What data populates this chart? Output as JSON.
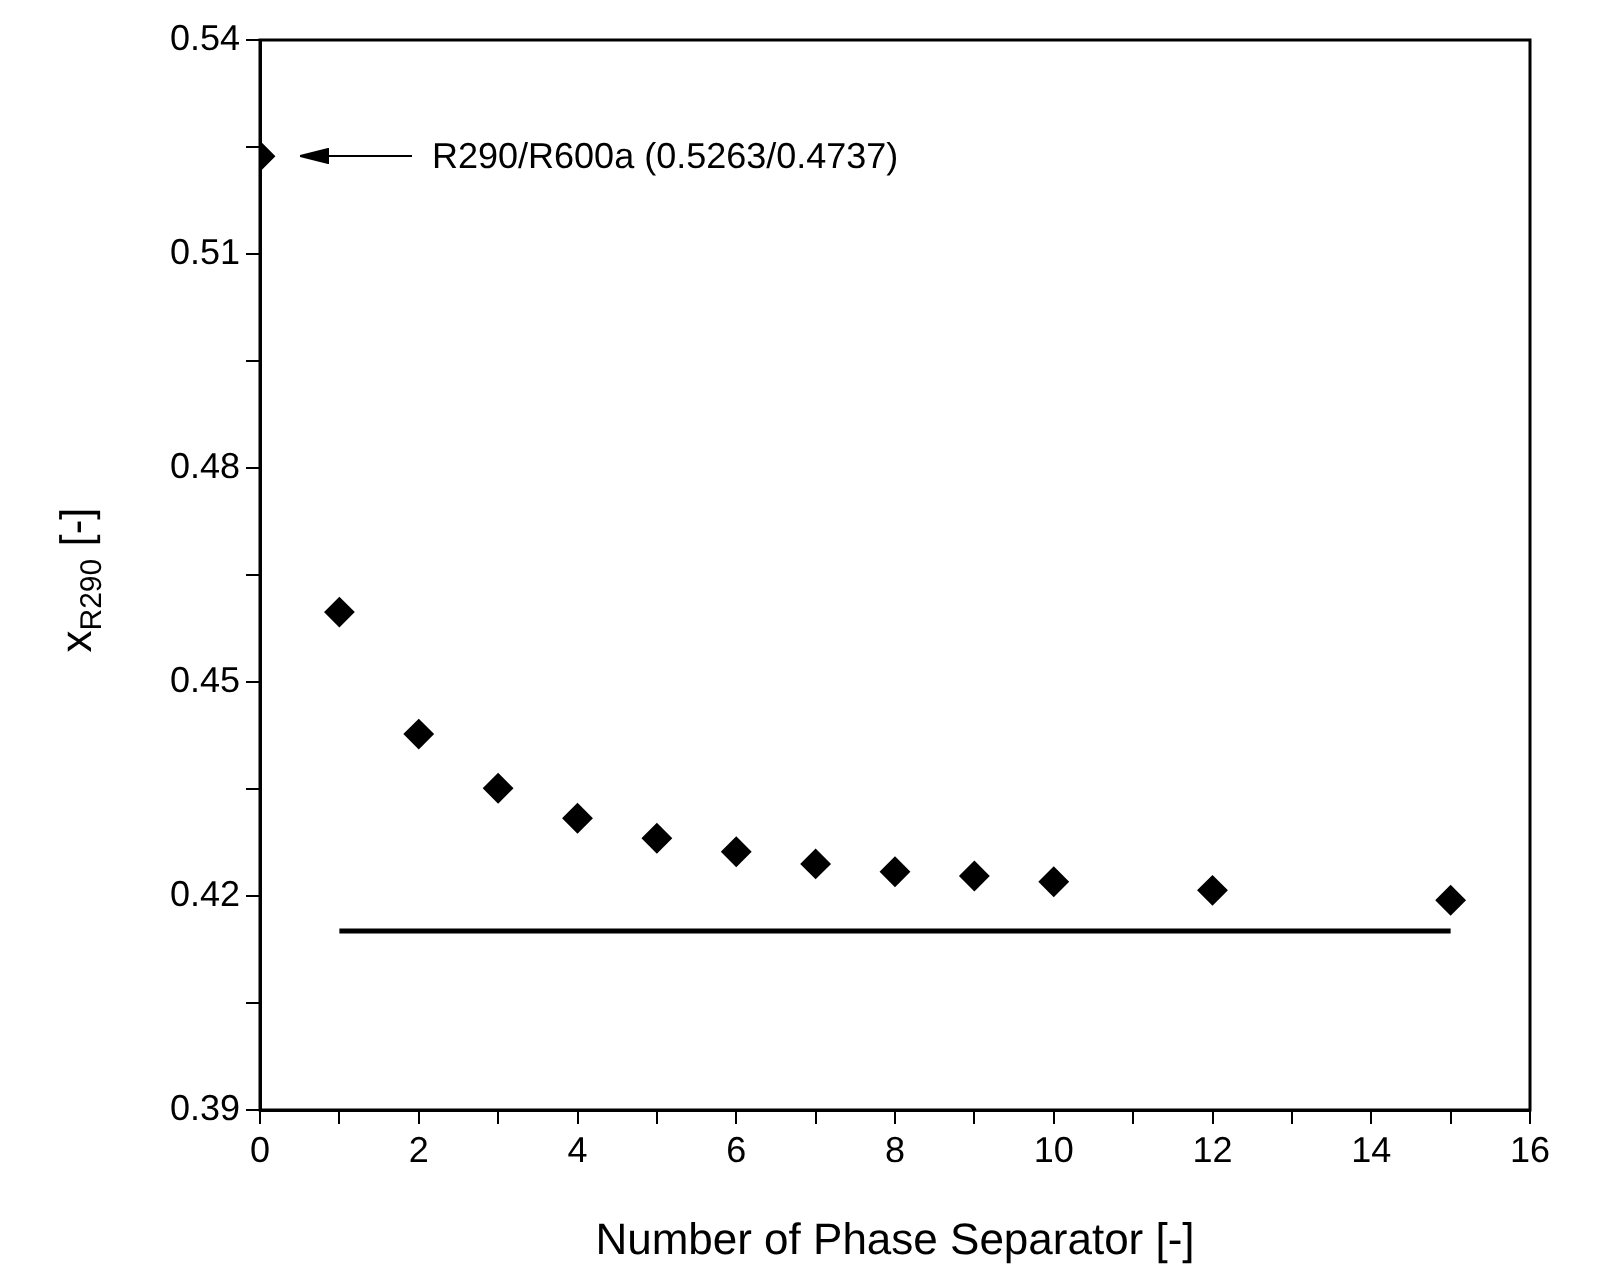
{
  "chart_data": {
    "type": "scatter",
    "xlabel": "Number of Phase Separator [-]",
    "ylabel": "x$_{R290}$ [-]",
    "series": [
      {
        "color": "#000000",
        "marker": "diamond",
        "x": [
          0,
          1,
          2,
          3,
          4,
          5,
          6,
          7,
          8,
          9,
          10,
          12,
          15
        ],
        "values": [
          0.5237,
          0.4598,
          0.4427,
          0.4351,
          0.4309,
          0.4281,
          0.4262,
          0.4245,
          0.4234,
          0.4228,
          0.422,
          0.4208,
          0.4194
        ]
      },
      {
        "type": "line",
        "color": "#000000",
        "marker": "none",
        "x": [
          1,
          15
        ],
        "values": [
          0.4151,
          0.4151
        ]
      }
    ],
    "annotations": [
      "R290/R600a (0.5263/0.4737)"
    ],
    "xlim": [
      0,
      16
    ],
    "ylim": [
      0.39,
      0.54
    ],
    "xticks": [
      0,
      {
        "value": 1,
        "label": null
      },
      2,
      {
        "value": 3,
        "label": null
      },
      4,
      {
        "value": 5,
        "label": null
      },
      6,
      {
        "value": 7,
        "label": null
      },
      8,
      {
        "value": 9,
        "label": null
      },
      10,
      {
        "value": 11,
        "label": null
      },
      12,
      {
        "value": 13,
        "label": null
      },
      14,
      {
        "value": 15,
        "label": null
      },
      16
    ],
    "yticks": [
      0.39,
      {
        "value": 0.405,
        "label": null
      },
      0.42,
      {
        "value": 0.435,
        "label": null
      },
      0.45,
      {
        "value": 0.465,
        "label": null
      },
      0.48,
      {
        "value": 0.495,
        "label": null
      },
      0.51,
      {
        "value": 0.525,
        "label": null
      },
      0.54
    ],
    "grid": false,
    "legend": false
  }
}
